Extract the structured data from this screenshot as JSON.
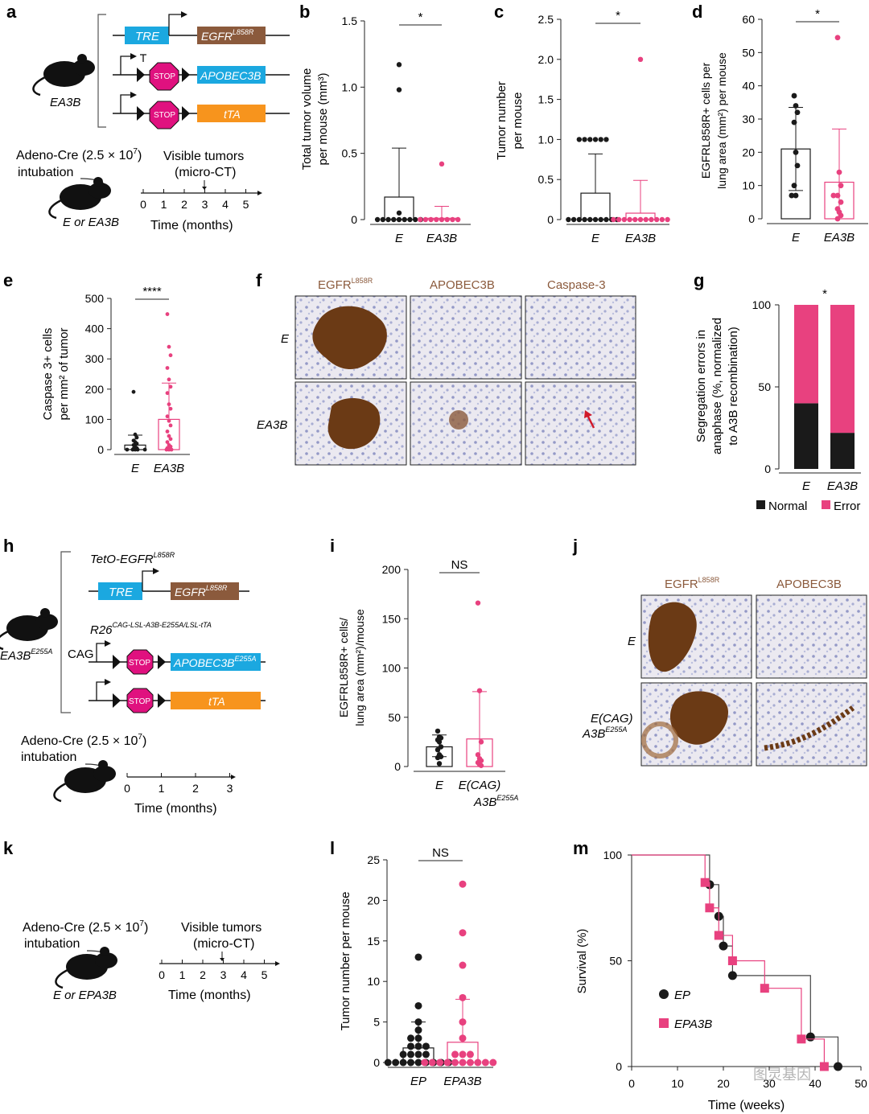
{
  "colors": {
    "pink": "#e8417f",
    "black": "#1a1a1a",
    "brown": "#8b5a3c",
    "blue": "#1ba8e0",
    "orange": "#f7941d",
    "stop": "#e0117f",
    "ihc_bg": "#e8e6ee"
  },
  "panel_a": {
    "label": "a",
    "tre": "TRE",
    "egfr": "EGFR",
    "egfr_sup": "L858R",
    "apobec": "APOBEC3B",
    "tta": "tTA",
    "stop": "STOP",
    "mouse": "EA3B",
    "cre_line1": "Adeno-Cre (2.5 × 10",
    "cre_exp": "7",
    "cre_close": ")",
    "cre_line2": "intubation",
    "visible1": "Visible tumors",
    "visible2": "(micro-CT)",
    "mouse2": "E or EA3B",
    "ticks": [
      "0",
      "1",
      "2",
      "3",
      "4",
      "5"
    ],
    "axis": "Time (months)"
  },
  "panel_b": {
    "label": "b",
    "sig": "*",
    "ylabel1": "Total tumor volume",
    "ylabel2": "per mouse (mm³)",
    "ticks": [
      "0",
      "0.5",
      "1.0",
      "1.5"
    ],
    "groups": [
      "E",
      "EA3B"
    ]
  },
  "panel_c": {
    "label": "c",
    "sig": "*",
    "ylabel1": "Tumor number",
    "ylabel2": "per mouse",
    "ticks": [
      "0",
      "0.5",
      "1.0",
      "1.5",
      "2.0",
      "2.5"
    ],
    "groups": [
      "E",
      "EA3B"
    ]
  },
  "panel_d": {
    "label": "d",
    "sig": "*",
    "ylabel1": "EGFRL858R+ cells per",
    "ylabel2": "lung area (mm²) per mouse",
    "ticks": [
      "0",
      "10",
      "20",
      "30",
      "40",
      "50",
      "60"
    ],
    "groups": [
      "E",
      "EA3B"
    ]
  },
  "panel_e": {
    "label": "e",
    "sig": "****",
    "ylabel1": "Caspase 3+ cells",
    "ylabel2": "per mm² of tumor",
    "ticks": [
      "0",
      "100",
      "200",
      "300",
      "400",
      "500"
    ],
    "groups": [
      "E",
      "EA3B"
    ]
  },
  "panel_f": {
    "label": "f",
    "cols": [
      "EGFR",
      "APOBEC3B",
      "Caspase-3"
    ],
    "col_sup": "L858R",
    "rows": [
      "E",
      "EA3B"
    ]
  },
  "panel_g": {
    "label": "g",
    "sig": "*",
    "ylabel1": "Segregation errors in",
    "ylabel2": "anaphase (%, normalized",
    "ylabel3": "to A3B recombination)",
    "ticks": [
      "0",
      "50",
      "100"
    ],
    "groups": [
      "E",
      "EA3B"
    ],
    "legend": [
      "Normal",
      "Error"
    ],
    "normal_pct": [
      40,
      22
    ]
  },
  "panel_h": {
    "label": "h",
    "teto": "TetO-EGFR",
    "teto_sup": "L858R",
    "tre": "TRE",
    "egfr": "EGFR",
    "egfr_sup": "L858R",
    "r26": "R26",
    "r26_sup": "CAG-LSL-A3B-E255A/LSL-tTA",
    "cag": "CAG",
    "apobec": "APOBEC3B",
    "apobec_sup": "E255A",
    "tta": "tTA",
    "stop": "STOP",
    "mouse": "EA3B",
    "mouse_sup": "E255A",
    "cre_line1": "Adeno-Cre (2.5 × 10",
    "cre_exp": "7",
    "cre_close": ")",
    "cre_line2": "intubation",
    "ticks": [
      "0",
      "1",
      "2",
      "3"
    ],
    "axis": "Time (months)"
  },
  "panel_i": {
    "label": "i",
    "sig": "NS",
    "ylabel1": "EGFRL858R+ cells/",
    "ylabel2": "lung area (mm²)/mouse",
    "ticks": [
      "0",
      "50",
      "100",
      "150",
      "200"
    ],
    "groups": [
      "E",
      "E(CAG)"
    ],
    "group2b": "A3B",
    "group2b_sup": "E255A"
  },
  "panel_j": {
    "label": "j",
    "cols": [
      "EGFR",
      "APOBEC3B"
    ],
    "col_sup": "L858R",
    "rows": [
      "E",
      "E(CAG)",
      "A3B"
    ],
    "row_sup": "E255A"
  },
  "panel_k": {
    "label": "k",
    "cre_line1": "Adeno-Cre (2.5 × 10",
    "cre_exp": "7",
    "cre_close": ")",
    "cre_line2": "intubation",
    "visible1": "Visible tumors",
    "visible2": "(micro-CT)",
    "mouse2": "E or EPA3B",
    "ticks": [
      "0",
      "1",
      "2",
      "3",
      "4",
      "5"
    ],
    "axis": "Time (months)"
  },
  "panel_l": {
    "label": "l",
    "sig": "NS",
    "ylabel": "Tumor number per mouse",
    "ticks": [
      "0",
      "5",
      "10",
      "15",
      "20",
      "25"
    ],
    "groups": [
      "EP",
      "EPA3B"
    ]
  },
  "panel_m": {
    "label": "m",
    "ylabel": "Survival (%)",
    "xlabel": "Time (weeks)",
    "yticks": [
      "0",
      "50",
      "100"
    ],
    "xticks": [
      "0",
      "10",
      "20",
      "30",
      "40",
      "50"
    ],
    "legend": [
      "EP",
      "EPA3B"
    ]
  },
  "watermark": "图灵基因",
  "chart_data": [
    {
      "panel": "b",
      "type": "box+scatter",
      "title": "",
      "ylabel": "Total tumor volume per mouse (mm3)",
      "ylim": [
        0,
        1.5
      ],
      "series": [
        {
          "name": "E",
          "median": 0,
          "q3": 0.17,
          "whisker_max": 0.54,
          "points": [
            1.17,
            0.98,
            0.05,
            0.0,
            0.0,
            0.0,
            0.0,
            0.0,
            0.0,
            0.0,
            0.0,
            0.0
          ]
        },
        {
          "name": "EA3B",
          "median": 0,
          "q3": 0.01,
          "whisker_max": 0.1,
          "points": [
            0.42,
            0.0,
            0.0,
            0.0,
            0.0,
            0.0,
            0.0,
            0.0,
            0.0
          ]
        }
      ]
    },
    {
      "panel": "c",
      "type": "box+scatter",
      "ylabel": "Tumor number per mouse",
      "ylim": [
        0,
        2.5
      ],
      "series": [
        {
          "name": "E",
          "q3": 0.33,
          "whisker_max": 0.82,
          "points": [
            1,
            1,
            1,
            1,
            1,
            1,
            0,
            0,
            0,
            0,
            0,
            0,
            0,
            0,
            0,
            0
          ]
        },
        {
          "name": "EA3B",
          "q3": 0.08,
          "whisker_max": 0.49,
          "points": [
            2.0,
            0,
            0,
            0,
            0,
            0,
            0,
            0,
            0,
            0,
            0,
            0
          ]
        }
      ]
    },
    {
      "panel": "d",
      "type": "bar+scatter",
      "ylabel": "EGFRL858R+ cells per lung area (mm2) per mouse",
      "ylim": [
        0,
        60
      ],
      "series": [
        {
          "name": "E",
          "mean": 21,
          "sd": [
            8.5,
            33.5
          ],
          "points": [
            37,
            34,
            32,
            29,
            20,
            16,
            10,
            7,
            7
          ]
        },
        {
          "name": "EA3B",
          "mean": 11,
          "sd": [
            0,
            27
          ],
          "points": [
            54.5,
            14,
            10,
            7,
            7,
            5,
            3,
            2,
            1,
            0
          ]
        }
      ]
    },
    {
      "panel": "e",
      "type": "box+scatter",
      "ylabel": "Caspase 3+ cells per mm2 of tumor",
      "ylim": [
        0,
        500
      ],
      "series": [
        {
          "name": "E",
          "q3": 15,
          "whisker_max": 48,
          "points": [
            191,
            50,
            40,
            30,
            25,
            20,
            15,
            10,
            5,
            3,
            0,
            0,
            0,
            0,
            0
          ]
        },
        {
          "name": "EA3B",
          "q3": 100,
          "whisker_max": 220,
          "points": [
            448,
            340,
            312,
            270,
            232,
            208,
            187,
            150,
            135,
            110,
            95,
            80,
            60,
            45,
            35,
            25,
            15,
            10,
            5,
            0,
            0,
            0
          ]
        }
      ]
    },
    {
      "panel": "g",
      "type": "stacked_bar",
      "categories": [
        "E",
        "EA3B"
      ],
      "series": [
        {
          "name": "Normal",
          "values": [
            40,
            22
          ]
        },
        {
          "name": "Error",
          "values": [
            60,
            78
          ]
        }
      ],
      "ylim": [
        0,
        100
      ]
    },
    {
      "panel": "i",
      "type": "bar+scatter",
      "ylabel": "EGFRL858R+ cells/lung area (mm2)/mouse",
      "ylim": [
        0,
        200
      ],
      "series": [
        {
          "name": "E",
          "mean": 20,
          "sd": [
            10,
            32
          ],
          "points": [
            36,
            30,
            29,
            27,
            25,
            20,
            17,
            12,
            10,
            9,
            3
          ]
        },
        {
          "name": "E(CAG) A3B E255A",
          "mean": 28,
          "sd": [
            0,
            76
          ],
          "points": [
            166,
            77,
            25,
            12,
            8,
            6,
            4,
            2,
            1
          ]
        }
      ]
    },
    {
      "panel": "l",
      "type": "box+scatter",
      "ylabel": "Tumor number per mouse",
      "ylim": [
        0,
        25
      ],
      "series": [
        {
          "name": "EP",
          "q3": 1.8,
          "whisker_max": 5,
          "points": [
            13,
            7,
            5,
            4,
            3,
            3,
            2,
            2,
            2,
            1,
            1,
            1,
            1,
            0,
            0,
            0,
            0,
            0,
            0,
            0,
            0,
            0
          ]
        },
        {
          "name": "EPA3B",
          "q3": 2.5,
          "whisker_max": 7.8,
          "points": [
            22,
            16,
            12,
            8,
            5,
            3,
            1,
            1,
            1,
            0,
            0,
            0,
            0,
            0,
            0,
            0,
            0,
            0,
            0
          ]
        }
      ]
    },
    {
      "panel": "m",
      "type": "line",
      "xlabel": "Time (weeks)",
      "ylabel": "Survival (%)",
      "xlim": [
        0,
        50
      ],
      "ylim": [
        0,
        100
      ],
      "series": [
        {
          "name": "EP",
          "x": [
            17,
            19,
            20,
            22,
            39,
            45
          ],
          "y": [
            86,
            71,
            57,
            43,
            14,
            0
          ]
        },
        {
          "name": "EPA3B",
          "x": [
            16,
            17,
            19,
            22,
            29,
            37,
            42
          ],
          "y": [
            87,
            75,
            62,
            50,
            37,
            13,
            0
          ]
        }
      ]
    }
  ]
}
